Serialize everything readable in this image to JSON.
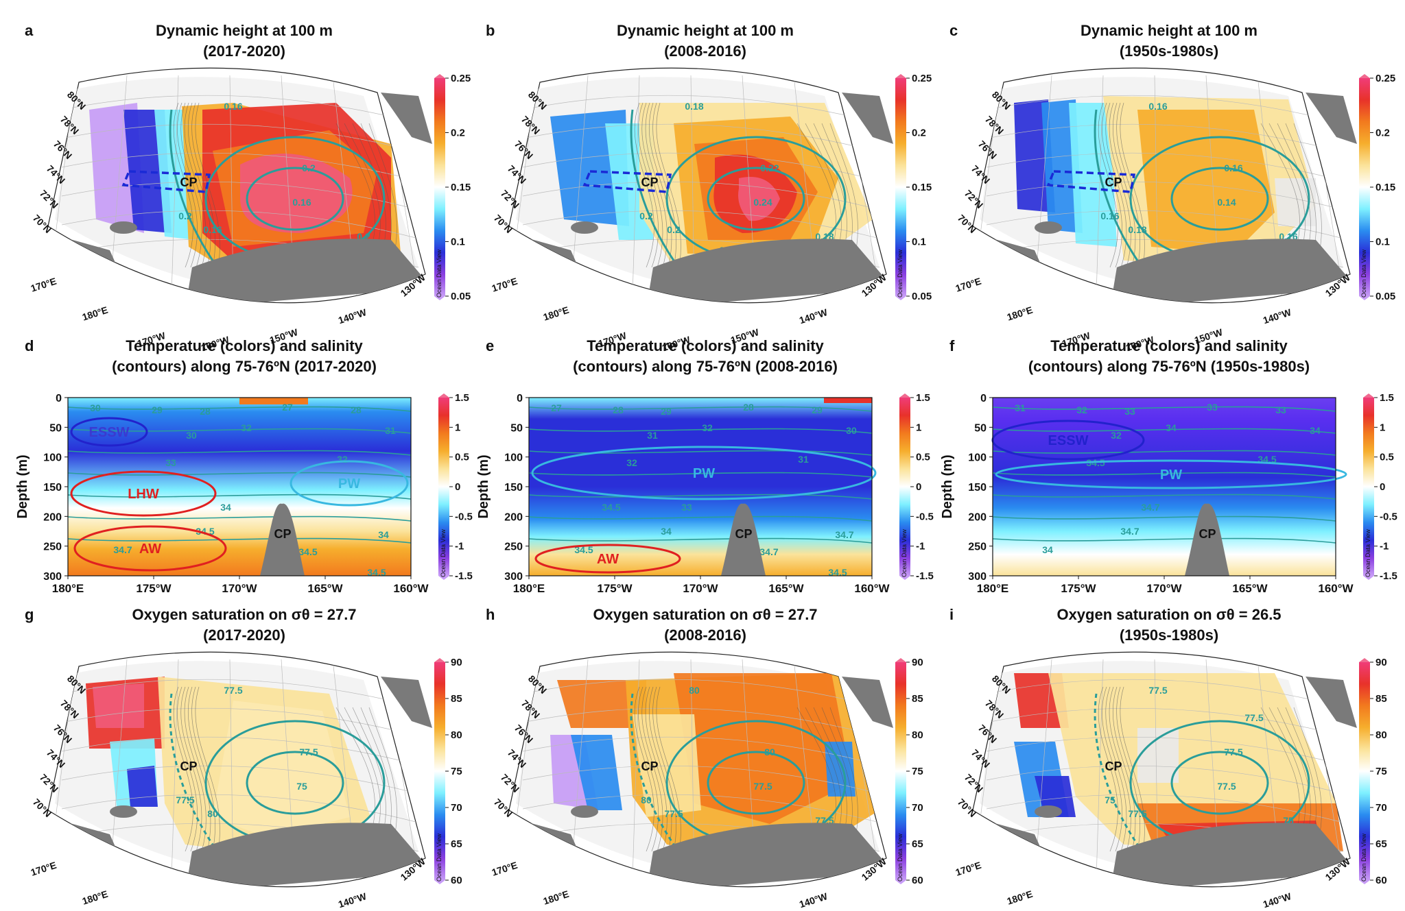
{
  "panels": [
    {
      "label": "a",
      "title": [
        "Dynamic height at 100 m",
        "(2017-2020)"
      ],
      "kind": "map",
      "cmap": "dh",
      "levels": [
        0.16,
        0.2
      ],
      "contour_labels": [
        "0.16",
        "0.2",
        "0.2",
        "0.16",
        "0.16",
        "0.2"
      ],
      "cbar": {
        "ticks": [
          "0.25",
          "0.2",
          "0.15",
          "0.1",
          "0.05"
        ]
      },
      "cp": "CP",
      "box": true
    },
    {
      "label": "b",
      "title": [
        "Dynamic height at 100 m",
        "(2008-2016)"
      ],
      "kind": "map",
      "cmap": "dh",
      "contour_labels": [
        "0.18",
        "0.2",
        "0.22",
        "0.24",
        "0.2",
        "0.18",
        "0.16"
      ],
      "cbar": {
        "ticks": [
          "0.25",
          "0.2",
          "0.15",
          "0.1",
          "0.05"
        ]
      },
      "cp": "CP",
      "box": true
    },
    {
      "label": "c",
      "title": [
        "Dynamic height at 100 m",
        "(1950s-1980s)"
      ],
      "kind": "map",
      "cmap": "dh",
      "contour_labels": [
        "0.16",
        "0.16",
        "0.16",
        "0.14",
        "0.18",
        "0.16"
      ],
      "cbar": {
        "ticks": [
          "0.25",
          "0.2",
          "0.15",
          "0.1",
          "0.05"
        ]
      },
      "cp": "CP",
      "box": true
    },
    {
      "label": "d",
      "title": [
        "Temperature (colors) and salinity",
        "(contours) along 75-76ºN (2017-2020)"
      ],
      "kind": "section",
      "ylabel": "Depth (m)",
      "water_masses": [
        "ESSW",
        "LHW",
        "AW",
        "PW"
      ],
      "contour_labels": [
        "30",
        "29",
        "28",
        "27",
        "28",
        "30",
        "32",
        "31",
        "32",
        "33",
        "34",
        "34.5",
        "34.7",
        "34.5",
        "34.5",
        "34"
      ],
      "cbar": {
        "ticks": [
          "1.5",
          "1",
          "0.5",
          "0",
          "-0.5",
          "-1",
          "-1.5"
        ]
      },
      "cp": "CP"
    },
    {
      "label": "e",
      "title": [
        "Temperature (colors) and salinity",
        "(contours) along 75-76ºN (2008-2016)"
      ],
      "kind": "section",
      "ylabel": "Depth (m)",
      "water_masses": [
        "PW",
        "AW"
      ],
      "contour_labels": [
        "27",
        "28",
        "29",
        "28",
        "29",
        "31",
        "32",
        "30",
        "31",
        "32",
        "33",
        "34",
        "34.5",
        "34.7",
        "34.5",
        "34.7",
        "34.5"
      ],
      "cbar": {
        "ticks": [
          "1.5",
          "1",
          "0.5",
          "0",
          "-0.5",
          "-1",
          "-1.5"
        ]
      },
      "cp": "CP"
    },
    {
      "label": "f",
      "title": [
        "Temperature (colors) and salinity",
        "(contours) along 75-76ºN (1950s-1980s)"
      ],
      "kind": "section",
      "ylabel": "Depth (m)",
      "water_masses": [
        "ESSW",
        "PW"
      ],
      "contour_labels": [
        "31",
        "32",
        "33",
        "33",
        "33",
        "32",
        "34",
        "34",
        "34.5",
        "34.5",
        "34.7",
        "34.7",
        "34"
      ],
      "cbar": {
        "ticks": [
          "1.5",
          "1",
          "0.5",
          "0",
          "-0.5",
          "-1",
          "-1.5"
        ]
      },
      "cp": "CP"
    },
    {
      "label": "g",
      "title": [
        "Oxygen saturation on σθ = 27.7",
        "(2017-2020)"
      ],
      "kind": "map",
      "cmap": "ox",
      "contour_labels": [
        "77.5",
        "77.5",
        "77.5",
        "75",
        "80"
      ],
      "cbar": {
        "ticks": [
          "90",
          "85",
          "80",
          "75",
          "70",
          "65",
          "60"
        ]
      },
      "cp": "CP",
      "box": false
    },
    {
      "label": "h",
      "title": [
        "Oxygen saturation on σθ = 27.7",
        "(2008-2016)"
      ],
      "kind": "map",
      "cmap": "ox",
      "contour_labels": [
        "80",
        "80",
        "80",
        "77.5",
        "77.5",
        "77.5",
        "75"
      ],
      "cbar": {
        "ticks": [
          "90",
          "85",
          "80",
          "75",
          "70",
          "65",
          "60"
        ]
      },
      "cp": "CP",
      "box": false
    },
    {
      "label": "i",
      "title": [
        "Oxygen saturation on σθ = 26.5",
        "(1950s-1980s)"
      ],
      "kind": "map",
      "cmap": "ox",
      "contour_labels": [
        "77.5",
        "75",
        "77.5",
        "77.5",
        "77.5",
        "75",
        "80",
        "77.5"
      ],
      "cbar": {
        "ticks": [
          "90",
          "85",
          "80",
          "75",
          "70",
          "65",
          "60"
        ]
      },
      "cp": "CP",
      "box": false
    }
  ],
  "map_lat_labels": [
    "80°N",
    "78°N",
    "76°N",
    "74°N",
    "72°N",
    "70°N"
  ],
  "map_lon_labels": [
    "170°E",
    "180°E",
    "170°W",
    "160°W",
    "150°W",
    "140°W",
    "130°W"
  ],
  "section_x_ticks": [
    "180°E",
    "175°W",
    "170°W",
    "165°W",
    "160°W"
  ],
  "section_y_ticks": [
    "0",
    "50",
    "100",
    "150",
    "200",
    "250",
    "300"
  ],
  "cbar_watermark": "Ocean Data View",
  "colors": {
    "land": "#7a7a7a",
    "contour": "#2a9d9a",
    "box": "#1a2ad6",
    "red_ellipse": "#e02020",
    "blue_ellipse": "#2222cc",
    "cyan_ellipse": "#38b8e0"
  },
  "chart_data": [
    {
      "type": "heatmap",
      "title": "Dynamic height at 100 m (2017-2020)",
      "colorbar_range": [
        0.05,
        0.25
      ],
      "colorbar_ticks": [
        0.05,
        0.1,
        0.15,
        0.2,
        0.25
      ],
      "contour_levels": [
        0.16,
        0.2
      ],
      "annotation": "CP"
    },
    {
      "type": "heatmap",
      "title": "Dynamic height at 100 m (2008-2016)",
      "colorbar_range": [
        0.05,
        0.25
      ],
      "colorbar_ticks": [
        0.05,
        0.1,
        0.15,
        0.2,
        0.25
      ],
      "contour_levels": [
        0.16,
        0.18,
        0.2,
        0.22,
        0.24
      ],
      "annotation": "CP"
    },
    {
      "type": "heatmap",
      "title": "Dynamic height at 100 m (1950s-1980s)",
      "colorbar_range": [
        0.05,
        0.25
      ],
      "colorbar_ticks": [
        0.05,
        0.1,
        0.15,
        0.2,
        0.25
      ],
      "contour_levels": [
        0.14,
        0.16,
        0.18
      ],
      "annotation": "CP"
    },
    {
      "type": "heatmap",
      "title": "Temperature (colors) and salinity (contours) along 75-76ºN (2017-2020)",
      "ylabel": "Depth (m)",
      "xlim": [
        "180°E",
        "160°W"
      ],
      "ylim": [
        300,
        0
      ],
      "colorbar_range": [
        -1.5,
        1.5
      ],
      "salinity_contours": [
        27,
        28,
        29,
        30,
        31,
        32,
        33,
        34,
        34.5,
        34.7
      ],
      "water_masses": [
        "ESSW",
        "LHW",
        "AW",
        "PW"
      ]
    },
    {
      "type": "heatmap",
      "title": "Temperature (colors) and salinity (contours) along 75-76ºN (2008-2016)",
      "ylabel": "Depth (m)",
      "xlim": [
        "180°E",
        "160°W"
      ],
      "ylim": [
        300,
        0
      ],
      "colorbar_range": [
        -1.5,
        1.5
      ],
      "salinity_contours": [
        27,
        28,
        29,
        30,
        31,
        32,
        33,
        34,
        34.5,
        34.7
      ],
      "water_masses": [
        "PW",
        "AW"
      ]
    },
    {
      "type": "heatmap",
      "title": "Temperature (colors) and salinity (contours) along 75-76ºN (1950s-1980s)",
      "ylabel": "Depth (m)",
      "xlim": [
        "180°E",
        "160°W"
      ],
      "ylim": [
        300,
        0
      ],
      "colorbar_range": [
        -1.5,
        1.5
      ],
      "salinity_contours": [
        31,
        32,
        33,
        34,
        34.5,
        34.7
      ],
      "water_masses": [
        "ESSW",
        "PW"
      ]
    },
    {
      "type": "heatmap",
      "title": "Oxygen saturation on σθ = 27.7 (2017-2020)",
      "colorbar_range": [
        60,
        90
      ],
      "colorbar_ticks": [
        60,
        65,
        70,
        75,
        80,
        85,
        90
      ],
      "contour_levels": [
        75,
        77.5,
        80
      ]
    },
    {
      "type": "heatmap",
      "title": "Oxygen saturation on σθ = 27.7 (2008-2016)",
      "colorbar_range": [
        60,
        90
      ],
      "colorbar_ticks": [
        60,
        65,
        70,
        75,
        80,
        85,
        90
      ],
      "contour_levels": [
        75,
        77.5,
        80
      ]
    },
    {
      "type": "heatmap",
      "title": "Oxygen saturation on σθ = 26.5 (1950s-1980s)",
      "colorbar_range": [
        60,
        90
      ],
      "colorbar_ticks": [
        60,
        65,
        70,
        75,
        80,
        85,
        90
      ],
      "contour_levels": [
        75,
        77.5,
        80
      ]
    }
  ]
}
